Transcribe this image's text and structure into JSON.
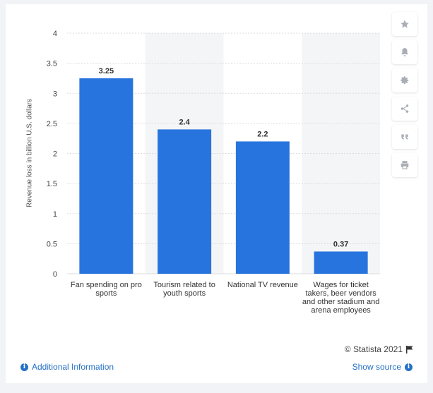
{
  "chart_data": {
    "type": "bar",
    "categories": [
      "Fan spending on pro sports",
      "Tourism related to youth sports",
      "National TV revenue",
      "Wages for ticket takers, beer vendors and other stadium and arena employees"
    ],
    "values": [
      3.25,
      2.4,
      2.2,
      0.37
    ],
    "data_labels": [
      "3.25",
      "2.4",
      "2.2",
      "0.37"
    ],
    "ylabel": "Revenue loss in billion U.S. dollars",
    "ylim": [
      0,
      4
    ],
    "yticks": [
      "0",
      "0.5",
      "1",
      "1.5",
      "2",
      "2.5",
      "3",
      "3.5",
      "4"
    ],
    "grid": true,
    "bar_color": "#2874de"
  },
  "toolbar": {
    "icons": [
      "star-icon",
      "bell-icon",
      "gear-icon",
      "share-icon",
      "quote-icon",
      "print-icon"
    ]
  },
  "footer": {
    "credit": "© Statista 2021",
    "additional_info": "Additional Information",
    "show_source": "Show source"
  }
}
